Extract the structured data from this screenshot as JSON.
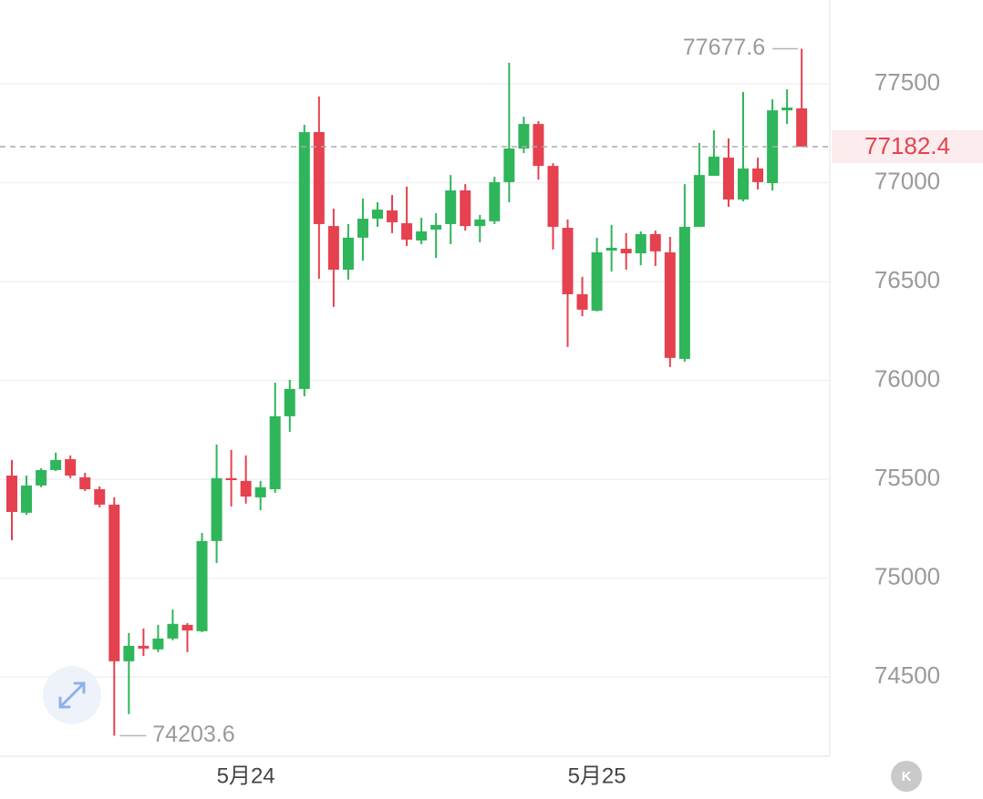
{
  "chart_data": {
    "type": "candlestick",
    "categories": [
      null,
      null,
      null,
      null,
      null,
      null,
      null,
      null,
      null,
      null,
      null,
      null,
      null,
      null,
      null,
      null,
      "5月24",
      null,
      null,
      null,
      null,
      null,
      null,
      null,
      null,
      null,
      null,
      null,
      null,
      null,
      null,
      null,
      null,
      null,
      null,
      null,
      null,
      null,
      null,
      null,
      "5月25",
      null,
      null,
      null,
      null,
      null,
      null,
      null,
      null,
      null,
      null,
      null,
      null,
      null,
      null
    ],
    "open": [
      75519,
      75331,
      75469,
      75547,
      75602,
      75510,
      75450,
      75372,
      74580,
      74658,
      74640,
      74695,
      74764,
      74732,
      75188,
      75506,
      75492,
      75409,
      75450,
      75819,
      75957,
      77256,
      76781,
      76560,
      76722,
      76818,
      76860,
      76795,
      76708,
      76763,
      76791,
      76961,
      76781,
      76805,
      77003,
      77173,
      77297,
      77085,
      76772,
      76436,
      76353,
      76657,
      76666,
      76643,
      76740,
      76648,
      76109,
      76777,
      77035,
      77127,
      76915,
      77072,
      76998,
      77366,
      77376
    ],
    "high": [
      75598,
      75519,
      75556,
      75635,
      75621,
      75533,
      75464,
      75409,
      74723,
      74746,
      74764,
      74842,
      74773,
      75229,
      75676,
      75648,
      75621,
      75492,
      75989,
      76003,
      77293,
      77436,
      76869,
      76791,
      76920,
      76901,
      76938,
      76980,
      76823,
      76846,
      77039,
      76993,
      76837,
      77030,
      77606,
      77334,
      77311,
      77099,
      76814,
      76524,
      76722,
      76786,
      76745,
      76754,
      76758,
      76726,
      76993,
      77201,
      77265,
      77224,
      77459,
      77127,
      77422,
      77472,
      77677.6
    ],
    "low": [
      75192,
      75321,
      75460,
      75542,
      75506,
      75441,
      75358,
      74203.6,
      74313,
      74607,
      74626,
      74686,
      74626,
      74727,
      75077,
      75363,
      75377,
      75344,
      75432,
      75740,
      75920,
      76514,
      76372,
      76510,
      76606,
      76777,
      76745,
      76680,
      76689,
      76620,
      76689,
      76758,
      76699,
      76791,
      76901,
      77150,
      77016,
      76662,
      76169,
      76325,
      76349,
      76551,
      76560,
      76583,
      76579,
      76068,
      76095,
      76777,
      77035,
      76878,
      76906,
      76966,
      76961,
      77297,
      77182.4
    ],
    "close": [
      75335,
      75469,
      75547,
      75598,
      75519,
      75450,
      75372,
      74580,
      74658,
      74644,
      74695,
      74769,
      74736,
      75188,
      75506,
      75496,
      75413,
      75460,
      75819,
      75957,
      77256,
      76791,
      76560,
      76722,
      76818,
      76864,
      76800,
      76712,
      76754,
      76786,
      76961,
      76781,
      76814,
      77003,
      77173,
      77297,
      77085,
      76777,
      76436,
      76358,
      76648,
      76671,
      76643,
      76740,
      76653,
      76114,
      76777,
      77039,
      77132,
      76915,
      77072,
      77003,
      77366,
      77380,
      77182.4
    ],
    "up_color": "#2fb55a",
    "down_color": "#e5414f",
    "ylim": [
      74100,
      77924
    ],
    "yticks": [
      74500,
      75000,
      75500,
      76000,
      76500,
      77000,
      77500
    ],
    "grid": true
  },
  "ui": {
    "kline_button": "K"
  }
}
